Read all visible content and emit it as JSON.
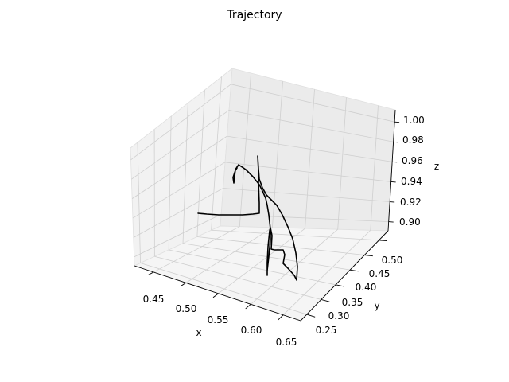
{
  "chart_data": {
    "type": "line3d",
    "title": "Trajectory",
    "xlabel": "x",
    "ylabel": "y",
    "zlabel": "z",
    "x_ticks": [
      "0.45",
      "0.50",
      "0.55",
      "0.60",
      "0.65"
    ],
    "y_ticks": [
      "0.25",
      "0.30",
      "0.35",
      "0.40",
      "0.45",
      "0.50"
    ],
    "z_ticks": [
      "0.90",
      "0.92",
      "0.94",
      "0.96",
      "0.98",
      "1.00"
    ],
    "grid": true,
    "line_color": "#000000",
    "pane_colors": {
      "left": "#f2f2f2",
      "right": "#ebebeb",
      "floor": "#f5f5f5"
    }
  }
}
